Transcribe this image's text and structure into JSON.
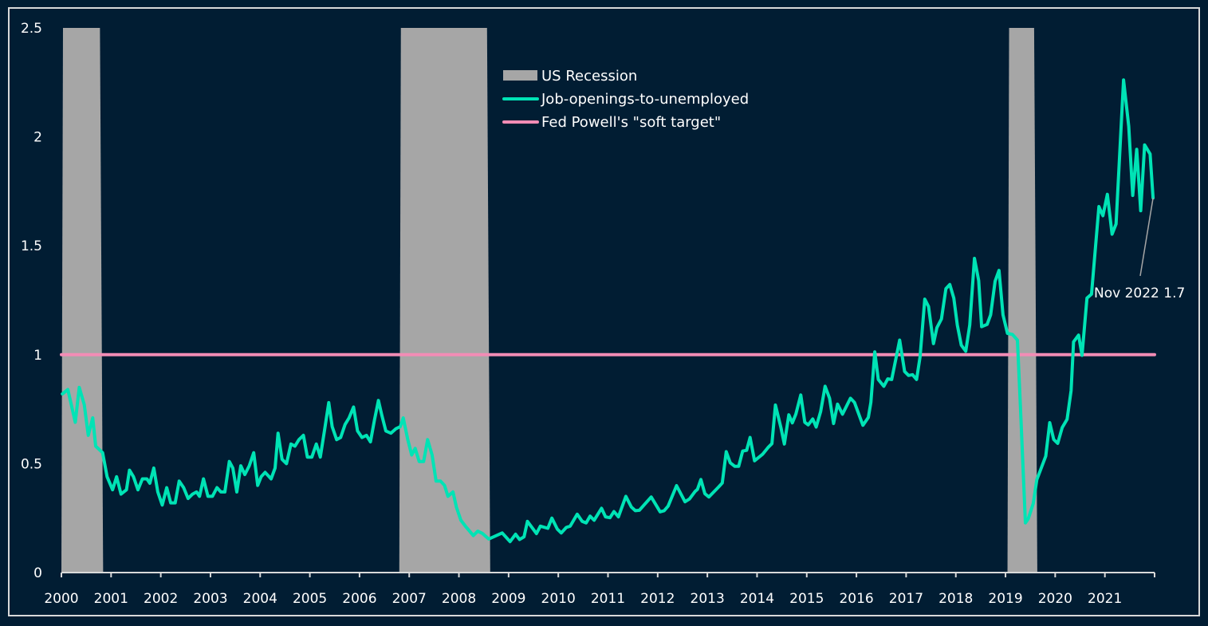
{
  "chart_data": {
    "type": "line",
    "title": "",
    "xlabel": "",
    "ylabel": "",
    "xlim": [
      2000,
      2022
    ],
    "ylim": [
      0,
      2.5
    ],
    "grid": false,
    "legend_position": "top-center",
    "x_tick_labels": [
      "2000",
      "2001",
      "2002",
      "2003",
      "2004",
      "2005",
      "2006",
      "2007",
      "2008",
      "2009",
      "2010",
      "2011",
      "2012",
      "2013",
      "2014",
      "2015",
      "2016",
      "2017",
      "2018",
      "2019",
      "2020",
      "2021"
    ],
    "y_tick_labels": [
      "0",
      "0.5",
      "1",
      "1.5",
      "2",
      "2.5"
    ],
    "y_ticks": [
      0,
      0.5,
      1,
      1.5,
      2,
      2.5
    ],
    "colors": {
      "background": "#011d33",
      "recession": "#a6a6a6",
      "line": "#00e3b5",
      "target": "#f28cb5",
      "axis": "#d9d9d9"
    },
    "legend": [
      {
        "label": "US Recession",
        "kind": "area"
      },
      {
        "label": "Job-openings-to-unemployed",
        "kind": "line"
      },
      {
        "label": "Fed Powell's \"soft target\"",
        "kind": "line"
      }
    ],
    "recessions": [
      [
        2000.0,
        2000.84
      ],
      [
        2006.8,
        2008.63
      ],
      [
        2019.04,
        2019.64
      ]
    ],
    "soft_target": {
      "value": 1.0,
      "x": [
        2000,
        2022
      ]
    },
    "annotation": {
      "text": "Nov 2022 1.7",
      "x": 2021.97,
      "y": 1.72
    },
    "series": [
      {
        "name": "Job-openings-to-unemployed",
        "points": [
          [
            2000.02,
            0.82
          ],
          [
            2000.13,
            0.84
          ],
          [
            2000.28,
            0.69
          ],
          [
            2000.36,
            0.85
          ],
          [
            2000.46,
            0.77
          ],
          [
            2000.54,
            0.63
          ],
          [
            2000.63,
            0.71
          ],
          [
            2000.69,
            0.58
          ],
          [
            2000.83,
            0.55
          ],
          [
            2000.92,
            0.44
          ],
          [
            2001.03,
            0.38
          ],
          [
            2001.11,
            0.44
          ],
          [
            2001.2,
            0.36
          ],
          [
            2001.31,
            0.38
          ],
          [
            2001.37,
            0.47
          ],
          [
            2001.45,
            0.44
          ],
          [
            2001.54,
            0.38
          ],
          [
            2001.63,
            0.43
          ],
          [
            2001.72,
            0.43
          ],
          [
            2001.78,
            0.41
          ],
          [
            2001.86,
            0.48
          ],
          [
            2001.94,
            0.37
          ],
          [
            2002.03,
            0.31
          ],
          [
            2002.12,
            0.39
          ],
          [
            2002.2,
            0.32
          ],
          [
            2002.29,
            0.32
          ],
          [
            2002.37,
            0.42
          ],
          [
            2002.46,
            0.39
          ],
          [
            2002.55,
            0.34
          ],
          [
            2002.64,
            0.36
          ],
          [
            2002.72,
            0.37
          ],
          [
            2002.78,
            0.35
          ],
          [
            2002.86,
            0.43
          ],
          [
            2002.95,
            0.35
          ],
          [
            2003.04,
            0.35
          ],
          [
            2003.13,
            0.39
          ],
          [
            2003.21,
            0.37
          ],
          [
            2003.29,
            0.37
          ],
          [
            2003.38,
            0.51
          ],
          [
            2003.45,
            0.48
          ],
          [
            2003.53,
            0.37
          ],
          [
            2003.61,
            0.49
          ],
          [
            2003.69,
            0.45
          ],
          [
            2003.78,
            0.49
          ],
          [
            2003.87,
            0.55
          ],
          [
            2003.95,
            0.4
          ],
          [
            2004.02,
            0.44
          ],
          [
            2004.1,
            0.46
          ],
          [
            2004.22,
            0.43
          ],
          [
            2004.3,
            0.48
          ],
          [
            2004.36,
            0.64
          ],
          [
            2004.44,
            0.52
          ],
          [
            2004.53,
            0.5
          ],
          [
            2004.62,
            0.59
          ],
          [
            2004.7,
            0.58
          ],
          [
            2004.78,
            0.61
          ],
          [
            2004.87,
            0.63
          ],
          [
            2004.95,
            0.53
          ],
          [
            2005.04,
            0.53
          ],
          [
            2005.13,
            0.59
          ],
          [
            2005.21,
            0.53
          ],
          [
            2005.3,
            0.66
          ],
          [
            2005.38,
            0.78
          ],
          [
            2005.45,
            0.67
          ],
          [
            2005.54,
            0.61
          ],
          [
            2005.62,
            0.62
          ],
          [
            2005.71,
            0.68
          ],
          [
            2005.79,
            0.71
          ],
          [
            2005.88,
            0.76
          ],
          [
            2005.96,
            0.65
          ],
          [
            2006.05,
            0.62
          ],
          [
            2006.14,
            0.63
          ],
          [
            2006.22,
            0.6
          ],
          [
            2006.3,
            0.7
          ],
          [
            2006.38,
            0.79
          ],
          [
            2006.45,
            0.72
          ],
          [
            2006.53,
            0.65
          ],
          [
            2006.63,
            0.64
          ],
          [
            2006.73,
            0.66
          ],
          [
            2006.82,
            0.67
          ],
          [
            2006.88,
            0.71
          ],
          [
            2006.97,
            0.61
          ],
          [
            2007.05,
            0.54
          ],
          [
            2007.12,
            0.57
          ],
          [
            2007.2,
            0.51
          ],
          [
            2007.29,
            0.51
          ],
          [
            2007.37,
            0.61
          ],
          [
            2007.46,
            0.54
          ],
          [
            2007.54,
            0.42
          ],
          [
            2007.63,
            0.42
          ],
          [
            2007.71,
            0.4
          ],
          [
            2007.78,
            0.35
          ],
          [
            2007.88,
            0.37
          ],
          [
            2007.95,
            0.3
          ],
          [
            2008.04,
            0.24
          ],
          [
            2008.14,
            0.21
          ],
          [
            2008.29,
            0.17
          ],
          [
            2008.38,
            0.19
          ],
          [
            2008.47,
            0.18
          ],
          [
            2008.6,
            0.154
          ],
          [
            2008.87,
            0.182
          ],
          [
            2009.03,
            0.142
          ],
          [
            2009.14,
            0.176
          ],
          [
            2009.22,
            0.152
          ],
          [
            2009.31,
            0.164
          ],
          [
            2009.38,
            0.235
          ],
          [
            2009.56,
            0.179
          ],
          [
            2009.64,
            0.213
          ],
          [
            2009.79,
            0.203
          ],
          [
            2009.87,
            0.25
          ],
          [
            2009.98,
            0.2
          ],
          [
            2010.06,
            0.182
          ],
          [
            2010.16,
            0.207
          ],
          [
            2010.24,
            0.213
          ],
          [
            2010.38,
            0.268
          ],
          [
            2010.48,
            0.235
          ],
          [
            2010.56,
            0.228
          ],
          [
            2010.64,
            0.259
          ],
          [
            2010.72,
            0.24
          ],
          [
            2010.87,
            0.295
          ],
          [
            2010.95,
            0.256
          ],
          [
            2011.04,
            0.252
          ],
          [
            2011.12,
            0.28
          ],
          [
            2011.21,
            0.256
          ],
          [
            2011.36,
            0.35
          ],
          [
            2011.47,
            0.301
          ],
          [
            2011.55,
            0.284
          ],
          [
            2011.63,
            0.286
          ],
          [
            2011.87,
            0.347
          ],
          [
            2012.05,
            0.279
          ],
          [
            2012.13,
            0.284
          ],
          [
            2012.21,
            0.305
          ],
          [
            2012.38,
            0.399
          ],
          [
            2012.55,
            0.325
          ],
          [
            2012.64,
            0.338
          ],
          [
            2012.75,
            0.372
          ],
          [
            2012.8,
            0.382
          ],
          [
            2012.87,
            0.427
          ],
          [
            2012.95,
            0.362
          ],
          [
            2013.03,
            0.347
          ],
          [
            2013.23,
            0.394
          ],
          [
            2013.3,
            0.411
          ],
          [
            2013.38,
            0.555
          ],
          [
            2013.46,
            0.504
          ],
          [
            2013.55,
            0.488
          ],
          [
            2013.63,
            0.488
          ],
          [
            2013.71,
            0.558
          ],
          [
            2013.79,
            0.561
          ],
          [
            2013.86,
            0.62
          ],
          [
            2013.95,
            0.513
          ],
          [
            2014.11,
            0.543
          ],
          [
            2014.22,
            0.574
          ],
          [
            2014.3,
            0.592
          ],
          [
            2014.37,
            0.769
          ],
          [
            2014.48,
            0.665
          ],
          [
            2014.55,
            0.59
          ],
          [
            2014.64,
            0.724
          ],
          [
            2014.71,
            0.687
          ],
          [
            2014.78,
            0.727
          ],
          [
            2014.88,
            0.815
          ],
          [
            2014.96,
            0.69
          ],
          [
            2015.03,
            0.678
          ],
          [
            2015.12,
            0.705
          ],
          [
            2015.19,
            0.668
          ],
          [
            2015.28,
            0.739
          ],
          [
            2015.37,
            0.855
          ],
          [
            2015.46,
            0.8
          ],
          [
            2015.54,
            0.684
          ],
          [
            2015.62,
            0.773
          ],
          [
            2015.72,
            0.727
          ],
          [
            2015.88,
            0.8
          ],
          [
            2015.96,
            0.781
          ],
          [
            2016.13,
            0.676
          ],
          [
            2016.24,
            0.712
          ],
          [
            2016.29,
            0.781
          ],
          [
            2016.37,
            1.013
          ],
          [
            2016.44,
            0.886
          ],
          [
            2016.55,
            0.855
          ],
          [
            2016.63,
            0.889
          ],
          [
            2016.71,
            0.886
          ],
          [
            2016.87,
            1.067
          ],
          [
            2016.97,
            0.923
          ],
          [
            2017.05,
            0.905
          ],
          [
            2017.13,
            0.908
          ],
          [
            2017.21,
            0.886
          ],
          [
            2017.28,
            0.99
          ],
          [
            2017.375,
            1.255
          ],
          [
            2017.45,
            1.221
          ],
          [
            2017.55,
            1.051
          ],
          [
            2017.62,
            1.124
          ],
          [
            2017.71,
            1.164
          ],
          [
            2017.8,
            1.303
          ],
          [
            2017.88,
            1.322
          ],
          [
            2017.96,
            1.26
          ],
          [
            2018.03,
            1.136
          ],
          [
            2018.11,
            1.044
          ],
          [
            2018.2,
            1.016
          ],
          [
            2018.28,
            1.136
          ],
          [
            2018.375,
            1.442
          ],
          [
            2018.46,
            1.34
          ],
          [
            2018.52,
            1.129
          ],
          [
            2018.63,
            1.139
          ],
          [
            2018.7,
            1.183
          ],
          [
            2018.79,
            1.337
          ],
          [
            2018.87,
            1.387
          ],
          [
            2018.95,
            1.183
          ],
          [
            2019.04,
            1.098
          ],
          [
            2019.14,
            1.093
          ],
          [
            2019.24,
            1.067
          ],
          [
            2019.3,
            0.766
          ],
          [
            2019.4,
            0.228
          ],
          [
            2019.46,
            0.248
          ],
          [
            2019.56,
            0.318
          ],
          [
            2019.63,
            0.426
          ],
          [
            2019.81,
            0.534
          ],
          [
            2019.89,
            0.688
          ],
          [
            2019.97,
            0.611
          ],
          [
            2020.05,
            0.593
          ],
          [
            2020.14,
            0.665
          ],
          [
            2020.24,
            0.704
          ],
          [
            2020.32,
            0.835
          ],
          [
            2020.37,
            1.059
          ],
          [
            2020.47,
            1.09
          ],
          [
            2020.54,
            0.997
          ],
          [
            2020.64,
            1.26
          ],
          [
            2020.73,
            1.278
          ],
          [
            2020.88,
            1.68
          ],
          [
            2020.96,
            1.638
          ],
          [
            2021.05,
            1.736
          ],
          [
            2021.145,
            1.553
          ],
          [
            2021.225,
            1.6
          ],
          [
            2021.375,
            2.261
          ],
          [
            2021.48,
            2.048
          ],
          [
            2021.56,
            1.731
          ],
          [
            2021.64,
            1.943
          ],
          [
            2021.72,
            1.661
          ],
          [
            2021.8,
            1.963
          ],
          [
            2021.91,
            1.921
          ],
          [
            2021.97,
            1.72
          ]
        ]
      }
    ]
  }
}
